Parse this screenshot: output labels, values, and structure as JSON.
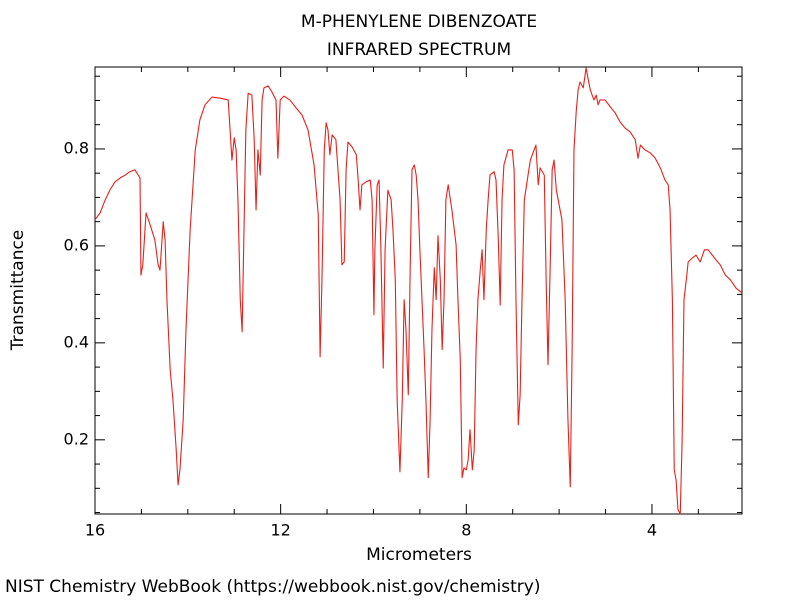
{
  "chart_data": {
    "type": "line",
    "title": "M-PHENYLENE DIBENZOATE",
    "subtitle": "INFRARED SPECTRUM",
    "xlabel": "Micrometers",
    "ylabel": "Transmittance",
    "source": "NIST Chemistry WebBook (https://webbook.nist.gov/chemistry)",
    "color": "#e8201a",
    "xlim": [
      16,
      2.06
    ],
    "ylim": [
      0.047,
      0.969
    ],
    "xticks": [
      16,
      12,
      8,
      4
    ],
    "yticks": [
      0.2,
      0.4,
      0.6,
      0.8
    ],
    "xminorticks": [
      15,
      14,
      13,
      11,
      10,
      9,
      7,
      6,
      5,
      3
    ],
    "yminorticks": [
      0.05,
      0.1,
      0.15,
      0.25,
      0.3,
      0.35,
      0.45,
      0.5,
      0.55,
      0.65,
      0.7,
      0.75,
      0.85,
      0.9,
      0.95
    ],
    "x": [
      16.0,
      15.89,
      15.78,
      15.68,
      15.57,
      15.46,
      15.35,
      15.25,
      15.14,
      15.03,
      15.01,
      14.97,
      14.9,
      14.81,
      14.71,
      14.64,
      14.6,
      14.53,
      14.49,
      14.45,
      14.38,
      14.32,
      14.25,
      14.21,
      14.17,
      14.1,
      14.04,
      13.95,
      13.84,
      13.74,
      13.63,
      13.48,
      13.31,
      13.13,
      13.05,
      13.0,
      12.96,
      12.92,
      12.87,
      12.83,
      12.79,
      12.75,
      12.7,
      12.62,
      12.57,
      12.53,
      12.49,
      12.44,
      12.4,
      12.36,
      12.27,
      12.19,
      12.1,
      12.06,
      12.01,
      11.93,
      11.8,
      11.67,
      11.54,
      11.41,
      11.28,
      11.19,
      11.15,
      11.11,
      11.06,
      11.02,
      10.98,
      10.94,
      10.89,
      10.81,
      10.72,
      10.68,
      10.63,
      10.59,
      10.55,
      10.46,
      10.37,
      10.33,
      10.29,
      10.25,
      10.16,
      10.07,
      10.03,
      9.99,
      9.97,
      9.92,
      9.88,
      9.84,
      9.79,
      9.75,
      9.69,
      9.62,
      9.58,
      9.53,
      9.49,
      9.43,
      9.38,
      9.34,
      9.3,
      9.25,
      9.21,
      9.17,
      9.12,
      9.08,
      9.04,
      9.0,
      8.91,
      8.87,
      8.82,
      8.78,
      8.74,
      8.69,
      8.65,
      8.61,
      8.56,
      8.52,
      8.48,
      8.44,
      8.39,
      8.31,
      8.22,
      8.18,
      8.13,
      8.09,
      8.05,
      8.0,
      7.96,
      7.92,
      7.87,
      7.83,
      7.79,
      7.75,
      7.7,
      7.66,
      7.62,
      7.57,
      7.53,
      7.49,
      7.4,
      7.36,
      7.31,
      7.27,
      7.23,
      7.19,
      7.1,
      7.01,
      6.97,
      6.93,
      6.88,
      6.84,
      6.8,
      6.75,
      6.67,
      6.62,
      6.54,
      6.5,
      6.45,
      6.41,
      6.32,
      6.28,
      6.24,
      6.19,
      6.15,
      6.11,
      6.06,
      6.02,
      5.94,
      5.87,
      5.81,
      5.76,
      5.72,
      5.68,
      5.63,
      5.59,
      5.55,
      5.48,
      5.42,
      5.33,
      5.25,
      5.2,
      5.16,
      5.12,
      5.01,
      4.9,
      4.79,
      4.69,
      4.58,
      4.47,
      4.36,
      4.3,
      4.25,
      4.15,
      4.04,
      3.93,
      3.82,
      3.72,
      3.65,
      3.61,
      3.56,
      3.52,
      3.48,
      3.44,
      3.39,
      3.35,
      3.31,
      3.26,
      3.22,
      3.13,
      3.05,
      2.96,
      2.87,
      2.79,
      2.7,
      2.62,
      2.53,
      2.42,
      2.31,
      2.19,
      2.06
    ],
    "values": [
      0.654,
      0.668,
      0.695,
      0.715,
      0.732,
      0.74,
      0.746,
      0.753,
      0.757,
      0.74,
      0.54,
      0.561,
      0.668,
      0.643,
      0.612,
      0.561,
      0.55,
      0.65,
      0.612,
      0.489,
      0.344,
      0.282,
      0.179,
      0.107,
      0.138,
      0.241,
      0.427,
      0.633,
      0.798,
      0.86,
      0.891,
      0.907,
      0.905,
      0.901,
      0.777,
      0.823,
      0.798,
      0.695,
      0.489,
      0.423,
      0.633,
      0.839,
      0.915,
      0.911,
      0.819,
      0.674,
      0.798,
      0.746,
      0.901,
      0.926,
      0.93,
      0.918,
      0.901,
      0.781,
      0.901,
      0.909,
      0.901,
      0.885,
      0.87,
      0.839,
      0.767,
      0.664,
      0.371,
      0.53,
      0.798,
      0.854,
      0.839,
      0.788,
      0.829,
      0.819,
      0.695,
      0.561,
      0.567,
      0.757,
      0.814,
      0.804,
      0.788,
      0.736,
      0.674,
      0.726,
      0.732,
      0.736,
      0.695,
      0.458,
      0.592,
      0.726,
      0.736,
      0.592,
      0.348,
      0.592,
      0.715,
      0.695,
      0.633,
      0.53,
      0.282,
      0.134,
      0.282,
      0.489,
      0.427,
      0.293,
      0.55,
      0.757,
      0.767,
      0.746,
      0.695,
      0.592,
      0.386,
      0.282,
      0.122,
      0.241,
      0.427,
      0.555,
      0.489,
      0.621,
      0.53,
      0.386,
      0.489,
      0.695,
      0.726,
      0.674,
      0.602,
      0.489,
      0.365,
      0.122,
      0.142,
      0.138,
      0.159,
      0.221,
      0.138,
      0.179,
      0.386,
      0.489,
      0.55,
      0.592,
      0.489,
      0.633,
      0.695,
      0.746,
      0.753,
      0.736,
      0.612,
      0.478,
      0.695,
      0.767,
      0.798,
      0.798,
      0.757,
      0.489,
      0.231,
      0.293,
      0.489,
      0.695,
      0.746,
      0.777,
      0.798,
      0.808,
      0.726,
      0.761,
      0.746,
      0.53,
      0.355,
      0.571,
      0.757,
      0.777,
      0.715,
      0.695,
      0.654,
      0.489,
      0.241,
      0.103,
      0.386,
      0.798,
      0.88,
      0.922,
      0.938,
      0.926,
      0.967,
      0.922,
      0.901,
      0.911,
      0.891,
      0.901,
      0.901,
      0.887,
      0.874,
      0.856,
      0.843,
      0.835,
      0.819,
      0.781,
      0.808,
      0.798,
      0.792,
      0.781,
      0.761,
      0.736,
      0.726,
      0.674,
      0.489,
      0.138,
      0.117,
      0.056,
      0.047,
      0.2,
      0.489,
      0.53,
      0.567,
      0.575,
      0.581,
      0.567,
      0.592,
      0.592,
      0.581,
      0.571,
      0.561,
      0.54,
      0.53,
      0.513,
      0.503
    ]
  }
}
